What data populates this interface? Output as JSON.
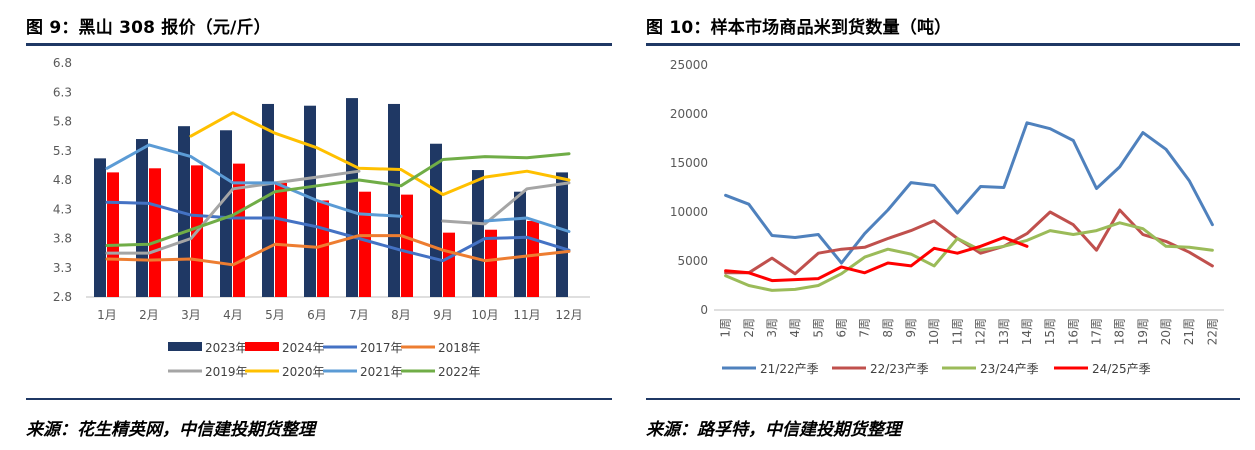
{
  "left": {
    "title": "图 9：黑山 308 报价（元/斤）",
    "source": "来源：花生精英网，中信建投期货整理"
  },
  "right": {
    "title": "图 10：样本市场商品米到货数量（吨）",
    "source": "来源：路孚特，中信建投期货整理"
  },
  "chart_data": [
    {
      "type": "bar+line",
      "title": "黑山 308 报价（元/斤）",
      "categories": [
        "1月",
        "2月",
        "3月",
        "4月",
        "5月",
        "6月",
        "7月",
        "8月",
        "9月",
        "10月",
        "11月",
        "12月"
      ],
      "ylim": [
        2.8,
        6.8
      ],
      "yticks": [
        "2.8",
        "3.3",
        "3.8",
        "4.3",
        "4.8",
        "5.3",
        "5.8",
        "6.3",
        "6.8"
      ],
      "grid": false,
      "legend_position": "bottom",
      "bar_series": [
        {
          "name": "2023年",
          "color": "#1f3864",
          "values": [
            5.17,
            5.5,
            5.72,
            5.65,
            6.1,
            6.07,
            6.2,
            6.1,
            5.42,
            4.97,
            4.6,
            4.93
          ]
        },
        {
          "name": "2024年",
          "color": "#ff0000",
          "values": [
            4.93,
            5.0,
            5.05,
            5.08,
            4.75,
            4.45,
            4.6,
            4.55,
            3.9,
            3.95,
            4.1,
            null
          ]
        }
      ],
      "line_series": [
        {
          "name": "2017年",
          "color": "#4472c4",
          "values": [
            4.42,
            4.4,
            4.2,
            4.15,
            4.15,
            4.0,
            3.8,
            3.6,
            3.42,
            3.8,
            3.82,
            3.6
          ]
        },
        {
          "name": "2018年",
          "color": "#ed7d31",
          "values": [
            3.45,
            3.43,
            3.45,
            3.35,
            3.7,
            3.65,
            3.85,
            3.85,
            3.6,
            3.42,
            3.5,
            3.58
          ]
        },
        {
          "name": "2019年",
          "color": "#a5a5a5",
          "values": [
            3.55,
            3.55,
            3.8,
            4.65,
            4.75,
            4.85,
            4.95,
            null,
            4.1,
            4.05,
            4.65,
            4.75
          ]
        },
        {
          "name": "2020年",
          "color": "#ffc000",
          "values": [
            null,
            null,
            5.55,
            5.95,
            5.6,
            5.35,
            5.0,
            4.98,
            4.55,
            4.85,
            4.95,
            4.8
          ]
        },
        {
          "name": "2021年",
          "color": "#5b9bd5",
          "values": [
            5.0,
            5.4,
            5.2,
            4.75,
            4.75,
            4.45,
            4.22,
            4.18,
            null,
            4.1,
            4.15,
            3.92
          ]
        },
        {
          "name": "2022年",
          "color": "#70ad47",
          "values": [
            3.68,
            3.7,
            3.95,
            4.2,
            4.6,
            4.7,
            4.8,
            4.7,
            5.15,
            5.2,
            5.18,
            5.25
          ]
        }
      ]
    },
    {
      "type": "line",
      "title": "样本市场商品米到货数量（吨）",
      "categories": [
        "1周",
        "2周",
        "3周",
        "4周",
        "5周",
        "6周",
        "7周",
        "8周",
        "9周",
        "10周",
        "11周",
        "12周",
        "13周",
        "14周",
        "15周",
        "16周",
        "17周",
        "18周",
        "19周",
        "20周",
        "21周",
        "22周"
      ],
      "ylim": [
        0,
        25000
      ],
      "yticks": [
        "0",
        "5000",
        "10000",
        "15000",
        "20000",
        "25000"
      ],
      "grid": false,
      "legend_position": "bottom",
      "series": [
        {
          "name": "21/22产季",
          "color": "#4f81bd",
          "values": [
            11700,
            10800,
            7600,
            7400,
            7700,
            4800,
            7800,
            10200,
            13000,
            12700,
            9900,
            12600,
            12500,
            19100,
            18500,
            17300,
            12400,
            14600,
            18100,
            16400,
            13200,
            8700
          ]
        },
        {
          "name": "22/23产季",
          "color": "#c0504d",
          "values": [
            3800,
            3800,
            5300,
            3700,
            5800,
            6200,
            6400,
            7300,
            8100,
            9100,
            7300,
            5800,
            6500,
            7800,
            10000,
            8700,
            6100,
            10200,
            7700,
            7000,
            5900,
            4500
          ]
        },
        {
          "name": "23/24产季",
          "color": "#9bbb59",
          "values": [
            3500,
            2500,
            2000,
            2100,
            2500,
            3700,
            5400,
            6200,
            5700,
            4500,
            7300,
            6100,
            6500,
            7100,
            8100,
            7700,
            8100,
            8900,
            8300,
            6500,
            6400,
            6100
          ]
        },
        {
          "name": "24/25产季",
          "color": "#ff0000",
          "values": [
            4000,
            3800,
            3000,
            3100,
            3200,
            4400,
            3800,
            4800,
            4500,
            6300,
            5800,
            6500,
            7400,
            6500,
            null,
            null,
            null,
            null,
            null,
            null,
            null,
            null
          ]
        }
      ]
    }
  ]
}
